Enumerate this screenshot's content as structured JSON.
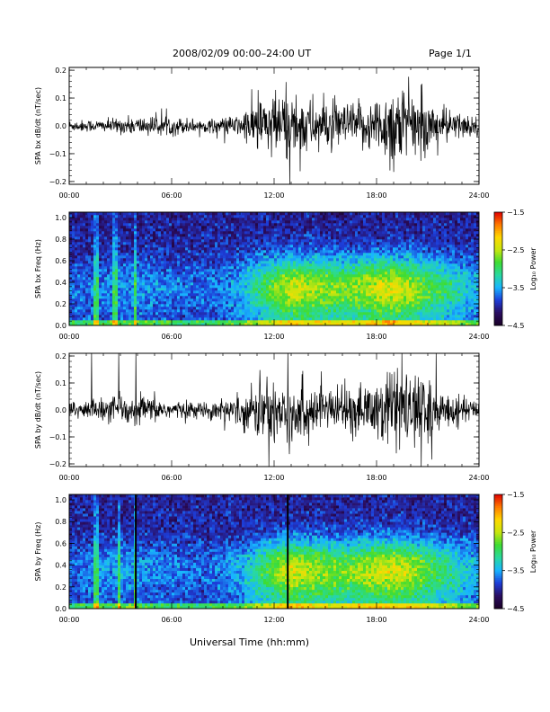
{
  "header": {
    "title": "2008/02/09  00:00–24:00 UT",
    "page": "Page 1/1"
  },
  "xaxis_label": "Universal Time (hh:mm)",
  "colors": {
    "waveform": "#000000",
    "frame": "#000000",
    "colormap": [
      "#1a0026",
      "#2a0d60",
      "#1d3dd8",
      "#18b5ff",
      "#29d9a0",
      "#3ddc33",
      "#c8e60e",
      "#ffd800",
      "#ff7a00",
      "#e00000"
    ]
  },
  "chart_data": [
    {
      "type": "line",
      "ylabel": "SPA bx dB/dt (nT/sec)",
      "x_ticks": [
        "00:00",
        "06:00",
        "12:00",
        "18:00",
        "24:00"
      ],
      "xlim": [
        0,
        24
      ],
      "y_ticks": [
        "0.2",
        "0.1",
        "0.0",
        "−0.1",
        "−0.2"
      ],
      "y_tick_values": [
        0.2,
        0.1,
        0.0,
        -0.1,
        -0.2
      ],
      "ylim": [
        -0.21,
        0.21
      ],
      "envelope_hours": [
        0,
        2,
        4,
        6,
        8,
        10,
        11,
        12,
        13,
        14,
        15,
        16,
        17,
        18,
        19,
        20,
        21,
        22,
        23,
        24
      ],
      "envelope_amp": [
        0.018,
        0.02,
        0.03,
        0.03,
        0.02,
        0.035,
        0.09,
        0.11,
        0.12,
        0.09,
        0.08,
        0.07,
        0.075,
        0.09,
        0.15,
        0.11,
        0.08,
        0.06,
        0.04,
        0.03
      ]
    },
    {
      "type": "heatmap",
      "ylabel": "SPA bx Freq (Hz)",
      "x_ticks": [
        "00:00",
        "06:00",
        "12:00",
        "18:00",
        "24:00"
      ],
      "xlim": [
        0,
        24
      ],
      "y_ticks": [
        "1.0",
        "0.8",
        "0.6",
        "0.4",
        "0.2",
        "0.0"
      ],
      "y_tick_values": [
        1.0,
        0.8,
        0.6,
        0.4,
        0.2,
        0.0
      ],
      "ylim": [
        0,
        1.05
      ],
      "colorbar": {
        "label": "Log₁₀ Power",
        "ticks": [
          "−1.5",
          "−2.5",
          "−3.5",
          "−4.5"
        ],
        "tick_values": [
          -1.5,
          -2.5,
          -3.5,
          -4.5
        ],
        "range": [
          -4.5,
          -1.5
        ]
      },
      "activity_hours": [
        0,
        2,
        4,
        6,
        8,
        10,
        11,
        12,
        13,
        14,
        15,
        16,
        17,
        18,
        19,
        20,
        21,
        22,
        23,
        24
      ],
      "activity_level": [
        0.15,
        0.2,
        0.25,
        0.2,
        0.15,
        0.3,
        0.5,
        0.7,
        0.85,
        0.8,
        0.75,
        0.7,
        0.75,
        0.85,
        0.9,
        0.8,
        0.65,
        0.55,
        0.4,
        0.3
      ],
      "spike_hours": [
        1.6,
        2.7,
        3.9
      ]
    },
    {
      "type": "line",
      "ylabel": "SPA by dB/dt (nT/sec)",
      "x_ticks": [
        "00:00",
        "06:00",
        "12:00",
        "18:00",
        "24:00"
      ],
      "xlim": [
        0,
        24
      ],
      "y_ticks": [
        "0.2",
        "0.1",
        "0.0",
        "−0.1",
        "−0.2"
      ],
      "y_tick_values": [
        0.2,
        0.1,
        0.0,
        -0.1,
        -0.2
      ],
      "ylim": [
        -0.21,
        0.21
      ],
      "envelope_hours": [
        0,
        2,
        4,
        6,
        8,
        10,
        11,
        12,
        13,
        14,
        15,
        16,
        17,
        18,
        19,
        20,
        21,
        22,
        23,
        24
      ],
      "envelope_amp": [
        0.03,
        0.04,
        0.05,
        0.03,
        0.025,
        0.05,
        0.09,
        0.12,
        0.14,
        0.09,
        0.07,
        0.07,
        0.08,
        0.1,
        0.16,
        0.12,
        0.09,
        0.06,
        0.04,
        0.03
      ],
      "spike_hours": [
        1.3,
        2.9,
        3.9,
        12.8,
        21.5
      ]
    },
    {
      "type": "heatmap",
      "ylabel": "SPA by Freq (Hz)",
      "x_ticks": [
        "00:00",
        "06:00",
        "12:00",
        "18:00",
        "24:00"
      ],
      "xlim": [
        0,
        24
      ],
      "y_ticks": [
        "1.0",
        "0.8",
        "0.6",
        "0.4",
        "0.2",
        "0.0"
      ],
      "y_tick_values": [
        1.0,
        0.8,
        0.6,
        0.4,
        0.2,
        0.0
      ],
      "ylim": [
        0,
        1.05
      ],
      "colorbar": {
        "label": "Log₁₀ Power",
        "ticks": [
          "−1.5",
          "−2.5",
          "−3.5",
          "−4.5"
        ],
        "tick_values": [
          -1.5,
          -2.5,
          -3.5,
          -4.5
        ],
        "range": [
          -4.5,
          -1.5
        ]
      },
      "activity_hours": [
        0,
        2,
        4,
        6,
        8,
        10,
        11,
        12,
        13,
        14,
        15,
        16,
        17,
        18,
        19,
        20,
        21,
        22,
        23,
        24
      ],
      "activity_level": [
        0.15,
        0.25,
        0.25,
        0.2,
        0.15,
        0.3,
        0.5,
        0.7,
        0.9,
        0.8,
        0.75,
        0.7,
        0.75,
        0.85,
        0.9,
        0.8,
        0.65,
        0.55,
        0.4,
        0.3
      ],
      "spike_hours": [
        1.6,
        2.9,
        3.9
      ],
      "gap_hours": [
        3.9,
        12.8
      ]
    }
  ]
}
